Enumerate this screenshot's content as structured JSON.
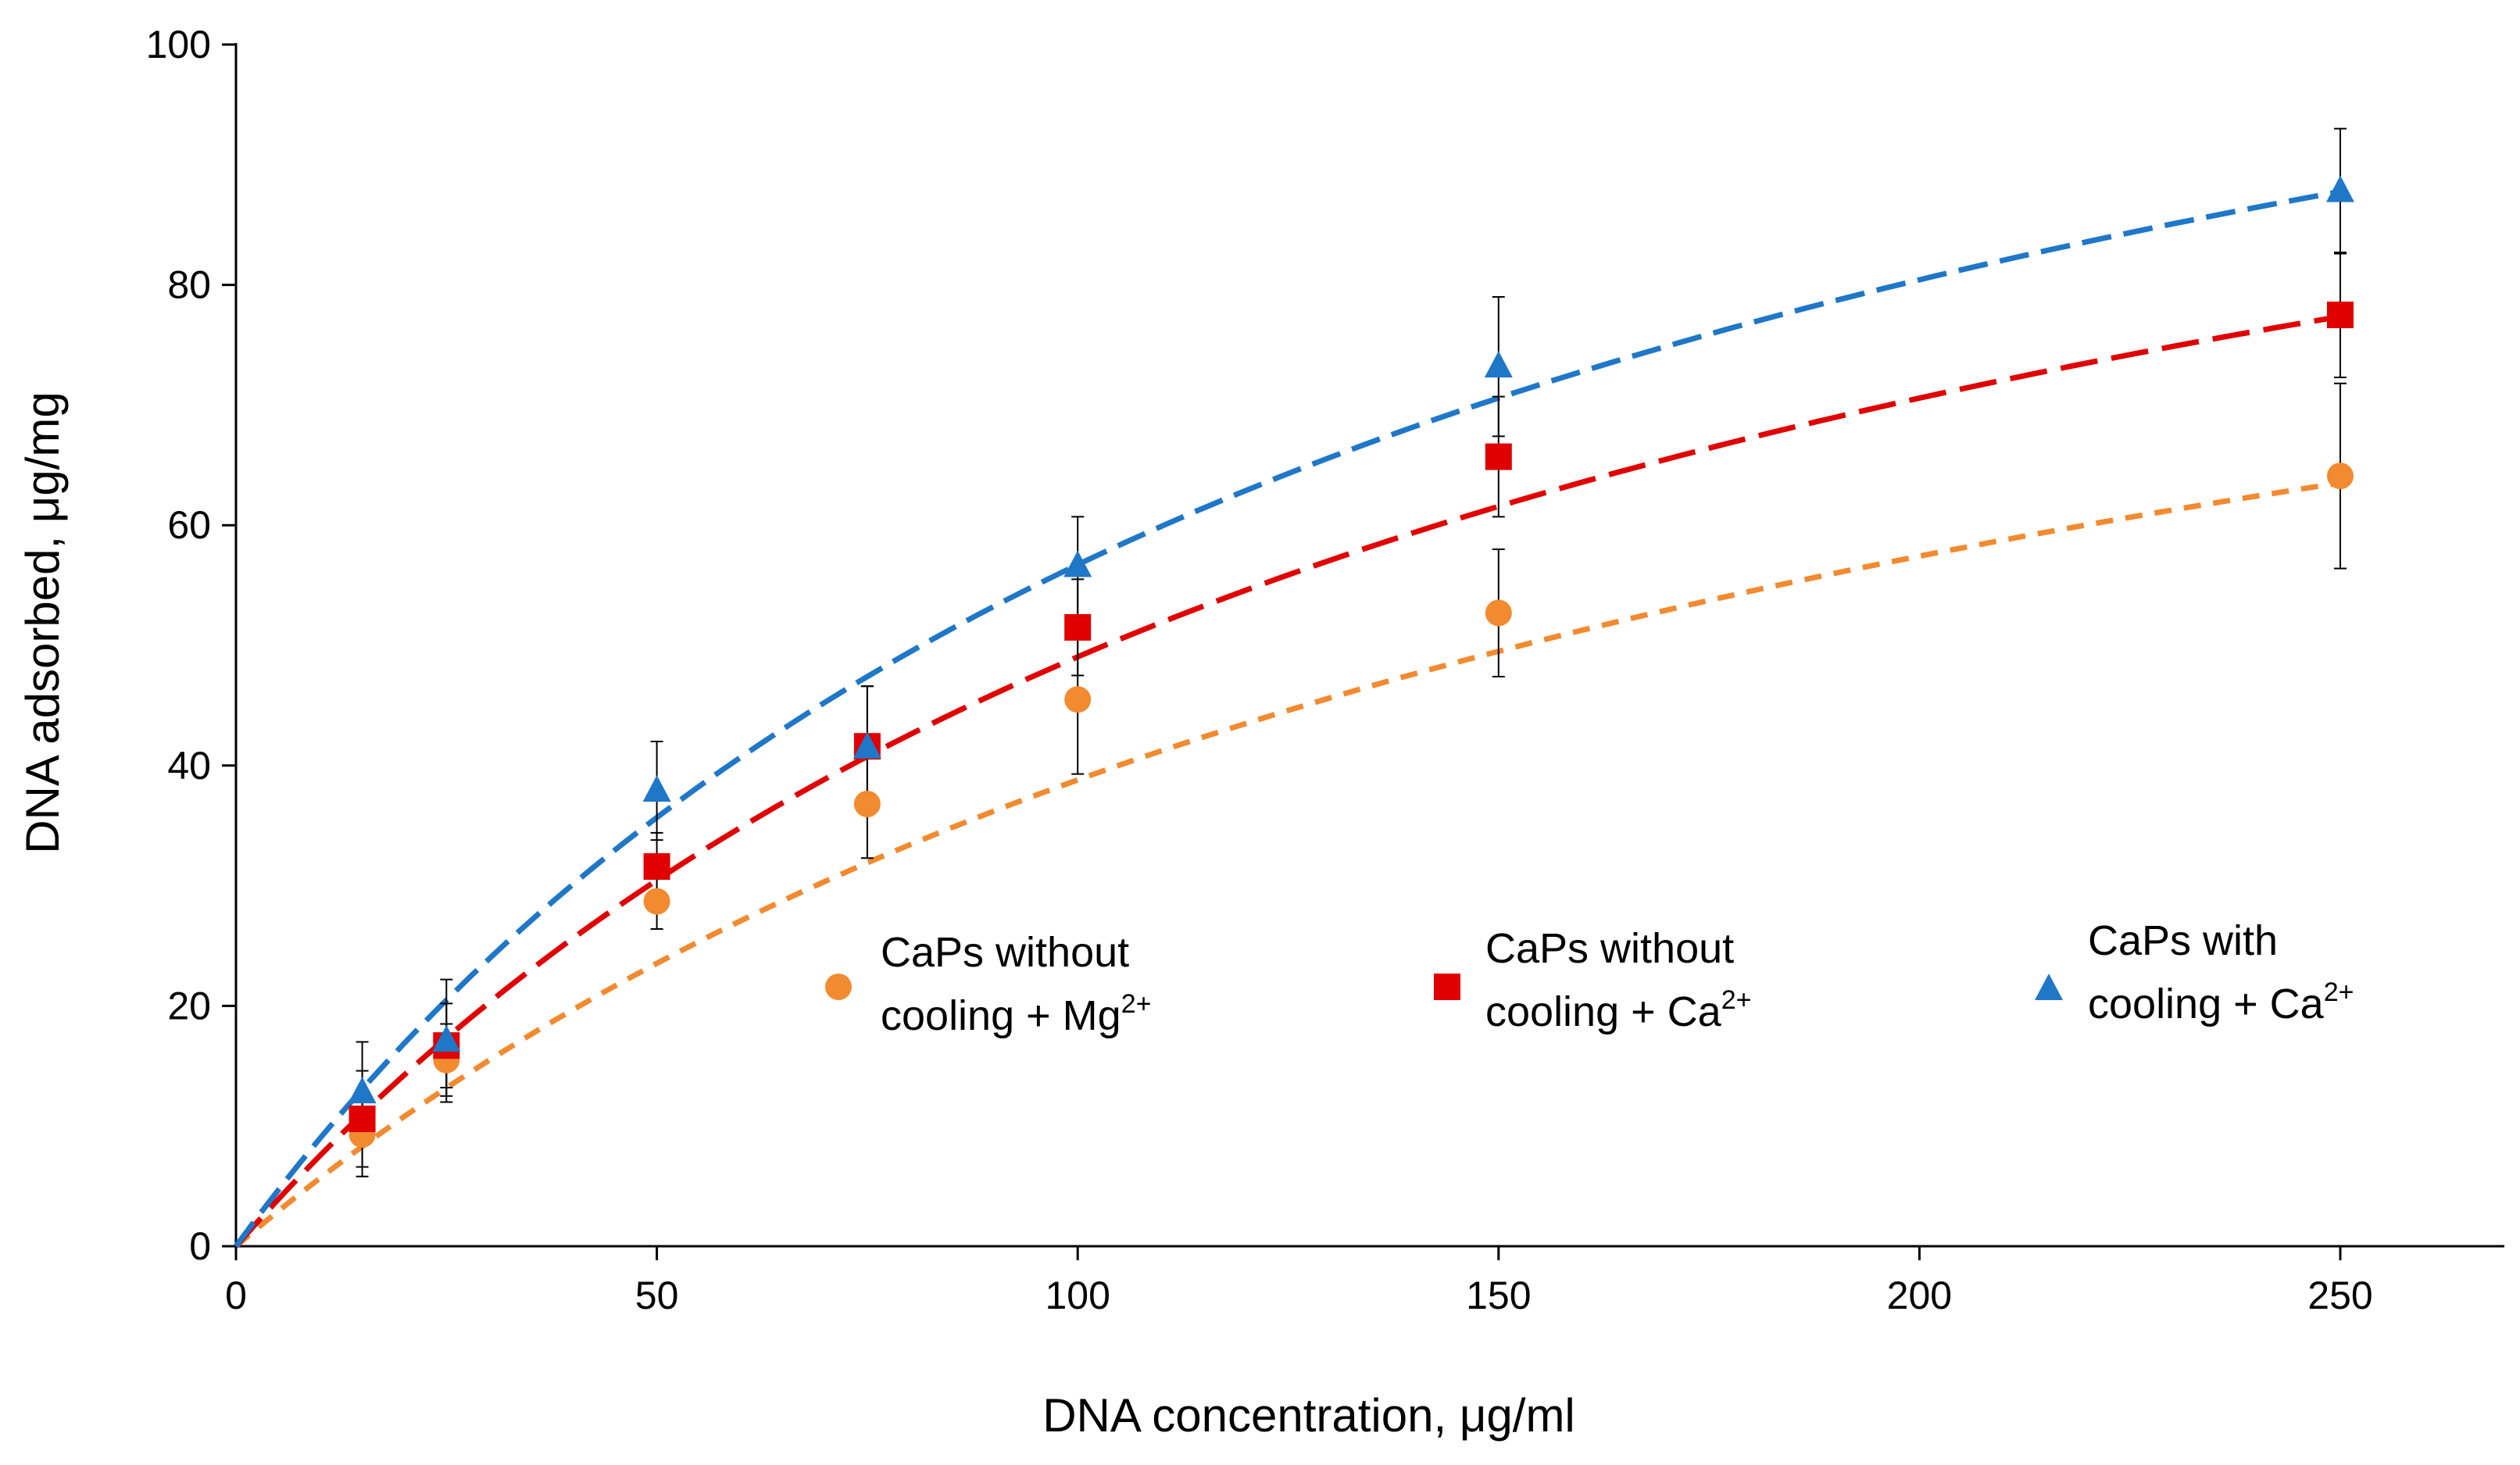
{
  "chart_data": {
    "type": "scatter",
    "xlabel": "DNA concentration, μg/ml",
    "ylabel": "DNA adsorbed, μg/mg",
    "xlim": [
      0,
      270
    ],
    "ylim": [
      0,
      100
    ],
    "x_ticks": [
      0,
      50,
      100,
      150,
      200,
      250
    ],
    "y_ticks": [
      0,
      20,
      40,
      60,
      80,
      100
    ],
    "x_tick_labels": [
      "0",
      "50",
      "100",
      "150",
      "200",
      "250"
    ],
    "y_tick_labels": [
      "0",
      "20",
      "40",
      "60",
      "80",
      "100"
    ],
    "grid": false,
    "legend_position": "middle-right",
    "series": [
      {
        "name": "CaPs without cooling + Mg2+",
        "legend_line1": "CaPs without",
        "legend_line2": "cooling + Mg",
        "legend_sup": "2+",
        "marker": "circle",
        "color": "#F28A30",
        "x": [
          15,
          25,
          50,
          75,
          100,
          150,
          250
        ],
        "y": [
          9.3,
          15.5,
          28.7,
          36.8,
          45.5,
          52.7,
          64.1
        ],
        "err": [
          3.5,
          3.0,
          2.3,
          4.5,
          6.2,
          5.3,
          7.7
        ],
        "fit": {
          "qmax": 110.4,
          "K": 0.00542,
          "dash": "22 16"
        }
      },
      {
        "name": "CaPs without cooling + Ca2+",
        "legend_line1": "CaPs without",
        "legend_line2": "cooling + Ca",
        "legend_sup": "2+",
        "marker": "square",
        "color": "#E00000",
        "x": [
          15,
          25,
          50,
          75,
          100,
          150,
          250
        ],
        "y": [
          10.6,
          16.7,
          31.6,
          41.6,
          51.5,
          65.7,
          77.5
        ],
        "err": [
          4.0,
          3.5,
          2.8,
          5.0,
          4.0,
          5.0,
          5.2
        ],
        "fit": {
          "qmax": 125.8,
          "K": 0.00639,
          "dash": "48 18"
        }
      },
      {
        "name": "CaPs with cooling + Ca2+",
        "legend_line1": "CaPs with",
        "legend_line2": "cooling + Ca",
        "legend_sup": "2+",
        "marker": "triangle",
        "color": "#1F77C8",
        "x": [
          15,
          25,
          50,
          75,
          100,
          150,
          250
        ],
        "y": [
          12.8,
          17.1,
          37.9,
          41.5,
          56.6,
          73.2,
          87.8
        ],
        "err": [
          4.2,
          5.1,
          4.1,
          5.1,
          4.1,
          5.8,
          5.2
        ],
        "fit": {
          "qmax": 138.2,
          "K": 0.00696,
          "dash": "38 16"
        }
      }
    ]
  }
}
